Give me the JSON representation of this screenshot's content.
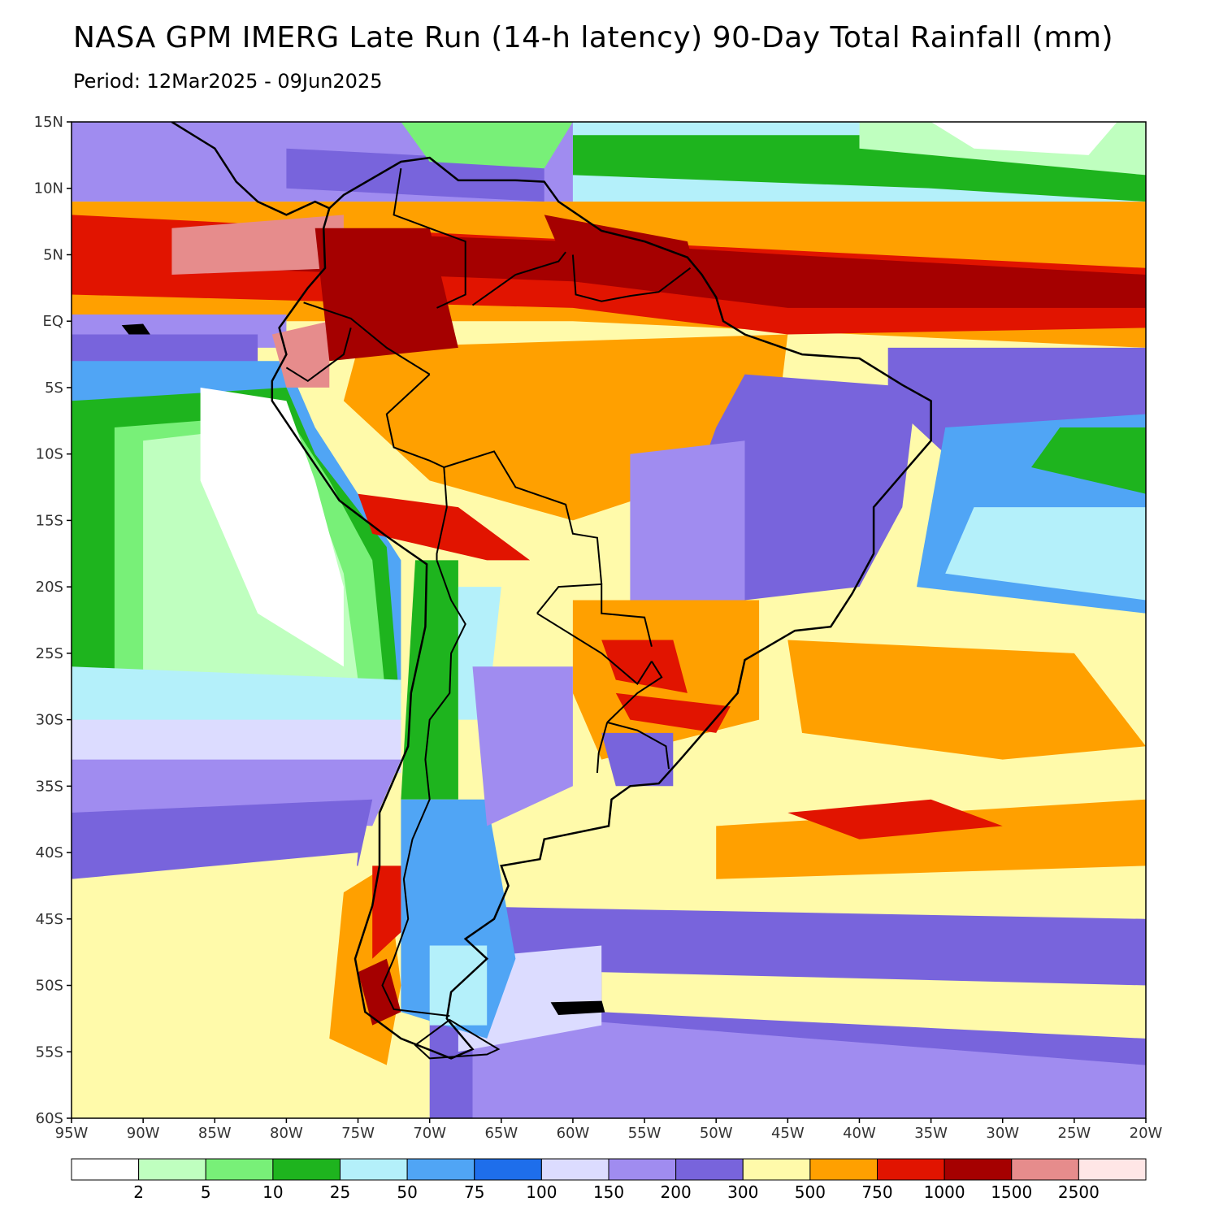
{
  "title": "NASA GPM IMERG Late Run (14-h latency) 90-Day Total Rainfall (mm)",
  "subtitle": "Period: 12Mar2025 - 09Jun2025",
  "map": {
    "lat_ticks": [
      "15N",
      "10N",
      "5N",
      "EQ",
      "5S",
      "10S",
      "15S",
      "20S",
      "25S",
      "30S",
      "35S",
      "40S",
      "45S",
      "50S",
      "55S",
      "60S"
    ],
    "lon_ticks": [
      "95W",
      "90W",
      "85W",
      "80W",
      "75W",
      "70W",
      "65W",
      "60W",
      "55W",
      "50W",
      "45W",
      "40W",
      "35W",
      "30W",
      "25W",
      "20W"
    ]
  },
  "colorbar": {
    "labels": [
      "2",
      "5",
      "10",
      "25",
      "50",
      "75",
      "100",
      "150",
      "200",
      "300",
      "500",
      "750",
      "1000",
      "1500",
      "2500"
    ],
    "colors": [
      "#ffffff",
      "#bfffbf",
      "#78f078",
      "#1eb41e",
      "#b4f0fa",
      "#50a5f5",
      "#1e6eeb",
      "#dcdcff",
      "#a08cf0",
      "#7864dc",
      "#fffaaa",
      "#ffa000",
      "#e11400",
      "#a50000",
      "#e68c8c",
      "#ffe6e6"
    ]
  },
  "palette": {
    "white": "#ffffff",
    "lightgreen": "#bfffbf",
    "green": "#78f078",
    "darkgreen": "#1eb41e",
    "cyan": "#b4f0fa",
    "blue": "#50a5f5",
    "darkblue": "#1e6eeb",
    "lavender": "#dcdcff",
    "purple": "#a08cf0",
    "violet": "#7864dc",
    "yellow": "#fffaaa",
    "orange": "#ffa000",
    "red": "#e11400",
    "darkred": "#a50000",
    "pink": "#e68c8c",
    "lightpink": "#ffe6e6"
  }
}
